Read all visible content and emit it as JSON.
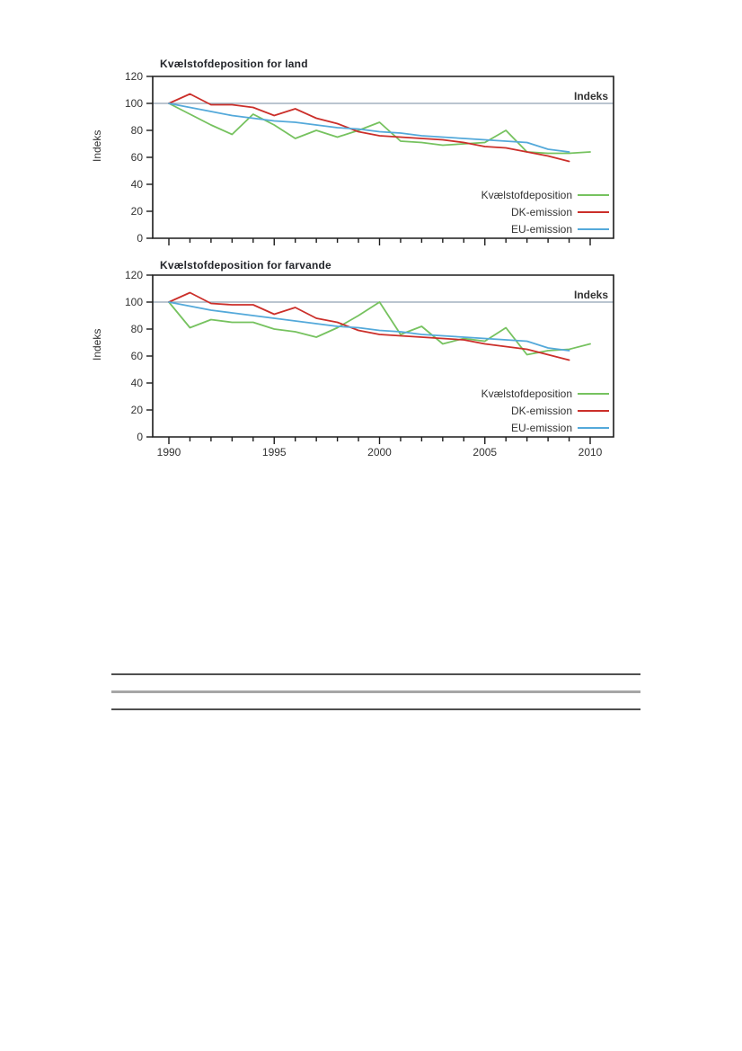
{
  "page": {
    "background": "#ffffff"
  },
  "colors": {
    "deposition_green": "#76c25f",
    "dk_emission_red": "#cb2f2a",
    "eu_emission_blue": "#54a9da",
    "reference_line": "#90a2b5",
    "axis": "#1c1c1c",
    "text": "#333333"
  },
  "chart_data": [
    {
      "type": "line",
      "title": "Kvælstofdeposition for land",
      "ylabel": "Indeks",
      "xlabel": "",
      "ylim": [
        0,
        120
      ],
      "xlim": [
        1989.3,
        2011.1
      ],
      "grid": false,
      "legend_position": "lower right",
      "x_labels_visible": false,
      "y_ticks": [
        0,
        20,
        40,
        60,
        80,
        100,
        120
      ],
      "x_tick_years_major": [
        1990,
        1995,
        2000,
        2005,
        2010
      ],
      "reference_line": {
        "value": 100,
        "label": "Indeks"
      },
      "x": [
        1990,
        1991,
        1992,
        1993,
        1994,
        1995,
        1996,
        1997,
        1998,
        1999,
        2000,
        2001,
        2002,
        2003,
        2004,
        2005,
        2006,
        2007,
        2008,
        2009,
        2010
      ],
      "series": [
        {
          "name": "Kvælstofdeposition",
          "color": "#76c25f",
          "values": [
            100,
            92,
            84,
            77,
            92,
            84,
            74,
            80,
            75,
            80,
            86,
            72,
            71,
            69,
            70,
            71,
            80,
            64,
            63,
            63,
            64
          ]
        },
        {
          "name": "DK-emission",
          "color": "#cb2f2a",
          "values": [
            100,
            107,
            99,
            99,
            97,
            91,
            96,
            89,
            85,
            79,
            76,
            75,
            74,
            73,
            71,
            68,
            67,
            64,
            61,
            57
          ]
        },
        {
          "name": "EU-emission",
          "color": "#54a9da",
          "values": [
            100,
            97,
            94,
            91,
            89,
            87,
            86,
            84,
            82,
            81,
            79,
            78,
            76,
            75,
            74,
            73,
            72,
            71,
            66,
            64
          ]
        }
      ]
    },
    {
      "type": "line",
      "title": "Kvælstofdeposition for farvande",
      "ylabel": "Indeks",
      "xlabel": "",
      "ylim": [
        0,
        120
      ],
      "xlim": [
        1989.3,
        2011.1
      ],
      "grid": false,
      "legend_position": "lower right",
      "x_labels_visible": true,
      "y_ticks": [
        0,
        20,
        40,
        60,
        80,
        100,
        120
      ],
      "x_tick_years_major": [
        1990,
        1995,
        2000,
        2005,
        2010
      ],
      "reference_line": {
        "value": 100,
        "label": "Indeks"
      },
      "x": [
        1990,
        1991,
        1992,
        1993,
        1994,
        1995,
        1996,
        1997,
        1998,
        1999,
        2000,
        2001,
        2002,
        2003,
        2004,
        2005,
        2006,
        2007,
        2008,
        2009,
        2010
      ],
      "series": [
        {
          "name": "Kvælstofdeposition",
          "color": "#76c25f",
          "values": [
            100,
            81,
            87,
            85,
            85,
            80,
            78,
            74,
            81,
            90,
            100,
            76,
            82,
            69,
            73,
            71,
            81,
            61,
            64,
            65,
            69
          ]
        },
        {
          "name": "DK-emission",
          "color": "#cb2f2a",
          "values": [
            100,
            107,
            99,
            98,
            98,
            91,
            96,
            88,
            85,
            79,
            76,
            75,
            74,
            73,
            72,
            69,
            67,
            65,
            61,
            57
          ]
        },
        {
          "name": "EU-emission",
          "color": "#54a9da",
          "values": [
            100,
            97,
            94,
            92,
            90,
            88,
            86,
            84,
            82,
            81,
            79,
            78,
            76,
            75,
            74,
            73,
            72,
            71,
            66,
            64
          ]
        }
      ]
    }
  ]
}
